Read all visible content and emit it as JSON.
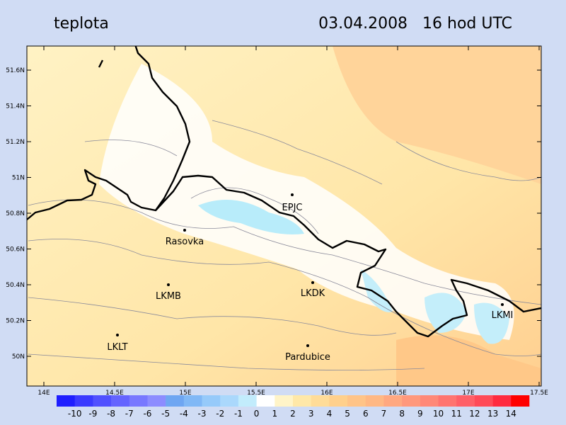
{
  "header": {
    "title": "teplota",
    "date": "03.04.2008   16 hod UTC"
  },
  "lat_labels": [
    "51.6N",
    "51.4N",
    "51.2N",
    "51N",
    "50.8N",
    "50.6N",
    "50.4N",
    "50.2N",
    "50N"
  ],
  "lon_labels": [
    "14E",
    "14.5E",
    "15E",
    "15.5E",
    "16E",
    "16.5E",
    "17E",
    "17.5E"
  ],
  "stations": [
    "EPJC",
    "Rasovka",
    "LKMB",
    "LKDK",
    "LKLT",
    "Pardubice",
    "LKMI"
  ],
  "colorbar": {
    "labels": [
      "-10",
      "-9",
      "-8",
      "-7",
      "-6",
      "-5",
      "-4",
      "-3",
      "-2",
      "-1",
      "0",
      "1",
      "2",
      "3",
      "4",
      "5",
      "6",
      "7",
      "8",
      "9",
      "10",
      "11",
      "12",
      "13",
      "14"
    ],
    "colors": [
      "#1e1eff",
      "#3a3aff",
      "#5050ff",
      "#6464ff",
      "#7878ff",
      "#8c8cff",
      "#6ea6f2",
      "#80b8f6",
      "#96cafa",
      "#aad8fc",
      "#c2ecfc",
      "#ffffff",
      "#fff4c8",
      "#ffe8a8",
      "#ffdc98",
      "#ffd08c",
      "#ffc488",
      "#ffb884",
      "#ffa880",
      "#ff987c",
      "#ff8878",
      "#ff7470",
      "#ff6068",
      "#ff4a58",
      "#ff2a40",
      "#ff0000"
    ]
  }
}
